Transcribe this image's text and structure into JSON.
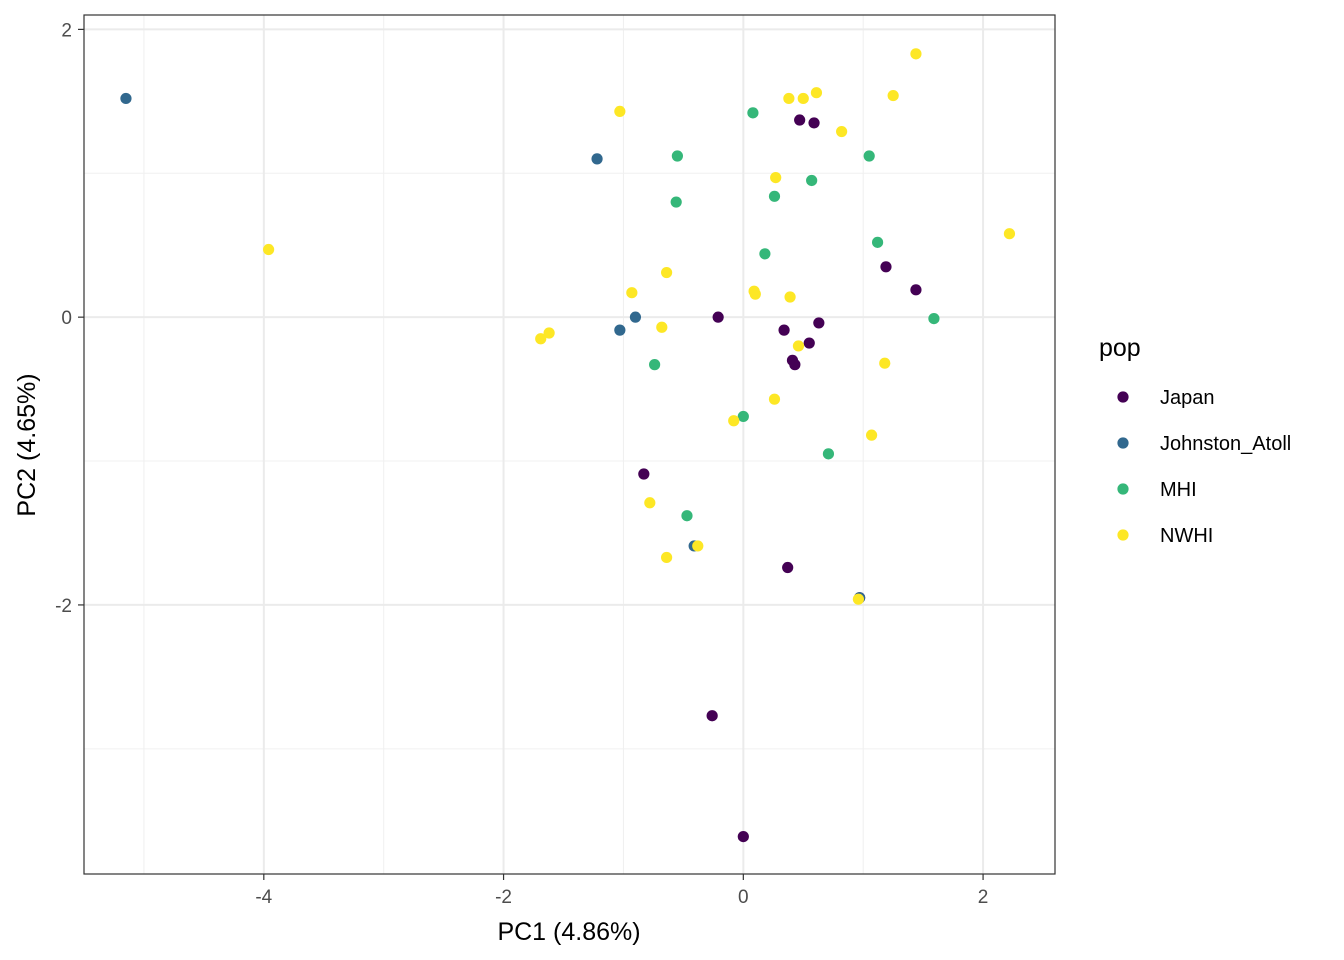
{
  "chart_data": {
    "type": "scatter",
    "xlabel": "PC1 (4.86%)",
    "ylabel": "PC2 (4.65%)",
    "xlim": [
      -5.5,
      2.6
    ],
    "ylim": [
      -3.87,
      2.1
    ],
    "x_ticks": [
      -4,
      -2,
      0,
      2
    ],
    "x_tick_labels": [
      "-4",
      "-2",
      "0",
      "2"
    ],
    "y_ticks": [
      2,
      0,
      -2
    ],
    "y_tick_labels": [
      "2",
      "0",
      "-2"
    ],
    "grid": true,
    "legend": {
      "title": "pop",
      "placement": "right",
      "entries": [
        "Japan",
        "Johnston_Atoll",
        "MHI",
        "NWHI"
      ]
    },
    "colors": {
      "Japan": "#440154",
      "Johnston_Atoll": "#31688E",
      "MHI": "#35B779",
      "NWHI": "#FDE725"
    },
    "series": [
      {
        "name": "Japan",
        "points": [
          [
            0.47,
            1.37
          ],
          [
            0.59,
            1.35
          ],
          [
            1.19,
            0.35
          ],
          [
            1.44,
            0.19
          ],
          [
            -0.21,
            0.0
          ],
          [
            0.34,
            -0.09
          ],
          [
            0.63,
            -0.04
          ],
          [
            0.55,
            -0.18
          ],
          [
            0.41,
            -0.3
          ],
          [
            0.43,
            -0.33
          ],
          [
            -0.83,
            -1.09
          ],
          [
            0.37,
            -1.74
          ],
          [
            0.97,
            -1.95
          ],
          [
            -0.26,
            -2.77
          ],
          [
            0.0,
            -3.61
          ]
        ]
      },
      {
        "name": "Johnston_Atoll",
        "points": [
          [
            -5.15,
            1.52
          ],
          [
            -1.22,
            1.1
          ],
          [
            -0.9,
            0.0
          ],
          [
            -1.03,
            -0.09
          ],
          [
            -0.41,
            -1.59
          ],
          [
            0.97,
            -1.95
          ]
        ]
      },
      {
        "name": "MHI",
        "points": [
          [
            0.08,
            1.42
          ],
          [
            -0.55,
            1.12
          ],
          [
            1.05,
            1.12
          ],
          [
            0.57,
            0.95
          ],
          [
            0.26,
            0.84
          ],
          [
            -0.56,
            0.8
          ],
          [
            1.12,
            0.52
          ],
          [
            0.18,
            0.44
          ],
          [
            1.59,
            -0.01
          ],
          [
            -0.74,
            -0.33
          ],
          [
            0.0,
            -0.69
          ],
          [
            0.71,
            -0.95
          ],
          [
            -0.47,
            -1.38
          ]
        ]
      },
      {
        "name": "NWHI",
        "points": [
          [
            1.44,
            1.83
          ],
          [
            0.61,
            1.56
          ],
          [
            1.25,
            1.54
          ],
          [
            0.38,
            1.52
          ],
          [
            0.5,
            1.52
          ],
          [
            -1.03,
            1.43
          ],
          [
            0.82,
            1.29
          ],
          [
            0.27,
            0.97
          ],
          [
            2.22,
            0.58
          ],
          [
            -3.96,
            0.47
          ],
          [
            -0.64,
            0.31
          ],
          [
            -0.93,
            0.17
          ],
          [
            0.09,
            0.18
          ],
          [
            0.1,
            0.16
          ],
          [
            0.39,
            0.14
          ],
          [
            -0.68,
            -0.07
          ],
          [
            -1.62,
            -0.11
          ],
          [
            -1.69,
            -0.15
          ],
          [
            0.46,
            -0.2
          ],
          [
            1.18,
            -0.32
          ],
          [
            0.26,
            -0.57
          ],
          [
            -0.08,
            -0.72
          ],
          [
            1.07,
            -0.82
          ],
          [
            -0.78,
            -1.29
          ],
          [
            -0.38,
            -1.59
          ],
          [
            -0.64,
            -1.67
          ],
          [
            0.96,
            -1.96
          ]
        ]
      }
    ]
  }
}
